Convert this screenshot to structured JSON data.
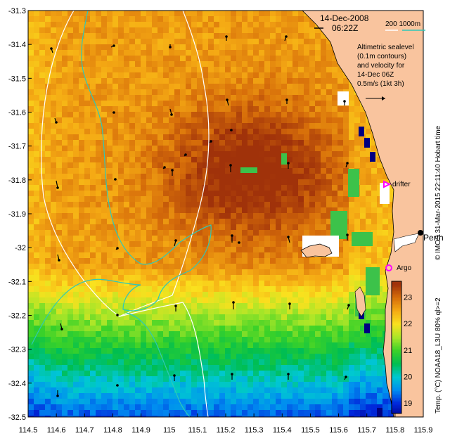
{
  "header": {
    "date": "14-Dec-2008",
    "time": "06:22Z",
    "bathymetry_label": "200  1000m"
  },
  "annotation_lines": [
    "Altimetric sealevel",
    "(0.1m contours)",
    "and velocity for",
    "14-Dec 06Z",
    "0.5m/s (1kt 3h)"
  ],
  "markers": {
    "drifter": "drifter",
    "perth": "Perth",
    "argo": "Argo"
  },
  "colorbar": {
    "label": "Temp. (°C) NOAA18_L3U 80% ql>=2",
    "ticks": [
      19,
      20,
      21,
      22,
      23
    ]
  },
  "credit": "© IMOS 31-Mar-2015 22:11:40 Hobart time",
  "axes": {
    "x_ticks": [
      "114.5",
      "114.6",
      "114.7",
      "114.8",
      "114.9",
      "115",
      "115.1",
      "115.2",
      "115.3",
      "115.4",
      "115.5",
      "115.6",
      "115.7",
      "115.8",
      "115.9"
    ],
    "y_ticks": [
      "-31.3",
      "-31.4",
      "-31.5",
      "-31.6",
      "-31.7",
      "-31.8",
      "-31.9",
      "-32",
      "-32.1",
      "-32.2",
      "-32.3",
      "-32.4",
      "-32.5"
    ]
  },
  "colors": {
    "land": "#f9c49e",
    "contour_200m": "#ffffff",
    "contour_1000m": "#2ec8b8",
    "drifter_marker": "#ff00ff",
    "argo_marker": "#ff00ff"
  }
}
